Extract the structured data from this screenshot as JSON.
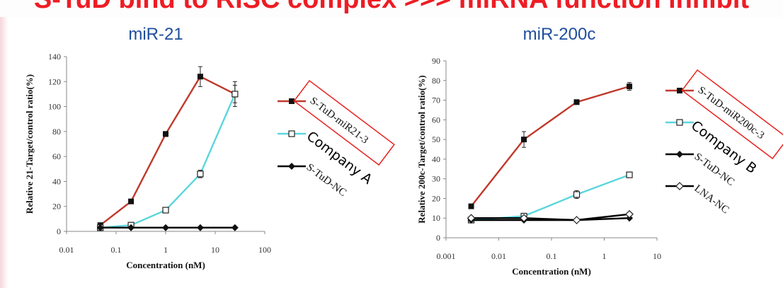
{
  "banner": {
    "title": "S-TuD bind to RISC complex >>> miRNA function inhibit"
  },
  "colors": {
    "red": "#c0392b",
    "cyan": "#5bd6dc",
    "black": "#000000",
    "box": "#e8211d"
  },
  "chart_data": [
    {
      "type": "line",
      "title": "miR-21",
      "xlabel": "Concentration (nM)",
      "ylabel": "Relative 21-Target/control ratio(%)",
      "xscale": "log",
      "xlim": [
        0.01,
        100
      ],
      "ylim": [
        0,
        140
      ],
      "xticks": [
        "0.01",
        "0.1",
        "1",
        "10",
        "100"
      ],
      "xtick_values": [
        0.01,
        0.1,
        1,
        10,
        100
      ],
      "yticks": [
        0,
        20,
        40,
        60,
        80,
        100,
        120,
        140
      ],
      "series": [
        {
          "name": "S-TuD-miR21-3",
          "color": "red",
          "marker": "filled-square",
          "x": [
            0.048,
            0.2,
            1,
            5,
            25
          ],
          "y": [
            5,
            24,
            78,
            124,
            110
          ],
          "err": [
            0,
            0,
            2,
            8,
            10
          ]
        },
        {
          "name": "Company A",
          "color": "cyan",
          "marker": "open-square",
          "x": [
            0.048,
            0.2,
            1,
            5,
            25
          ],
          "y": [
            3,
            5,
            17,
            46,
            110
          ],
          "err": [
            0,
            0,
            1,
            3,
            7
          ]
        },
        {
          "name": "S-TuD-NC",
          "color": "black",
          "marker": "filled-diamond",
          "x": [
            0.048,
            0.2,
            1,
            5,
            25
          ],
          "y": [
            3,
            3,
            3,
            3,
            3
          ],
          "err": [
            0,
            0,
            0,
            0,
            0
          ]
        }
      ],
      "legend": [
        "S-TuD-miR21-3",
        "Company A",
        "S-TuD-NC"
      ],
      "annotation": {
        "boxed_label": "S-TuD-miR21-3",
        "company": "Company A"
      }
    },
    {
      "type": "line",
      "title": "miR-200c",
      "xlabel": "Concentration (nM)",
      "ylabel": "Relative 200c-Target/control ratio(%)",
      "xscale": "log",
      "xlim": [
        0.001,
        10
      ],
      "ylim": [
        0,
        90
      ],
      "xticks": [
        "0.001",
        "0.01",
        "0.1",
        "1",
        "10"
      ],
      "xtick_values": [
        0.001,
        0.01,
        0.1,
        1,
        10
      ],
      "yticks": [
        0,
        10,
        20,
        30,
        40,
        50,
        60,
        70,
        80,
        90
      ],
      "series": [
        {
          "name": "S-TuD-miR200c-3",
          "color": "red",
          "marker": "filled-square",
          "x": [
            0.003,
            0.03,
            0.3,
            3
          ],
          "y": [
            16,
            50,
            69,
            77
          ],
          "err": [
            0,
            4,
            0,
            2
          ]
        },
        {
          "name": "Company B",
          "color": "cyan",
          "marker": "open-square",
          "x": [
            0.003,
            0.03,
            0.3,
            3
          ],
          "y": [
            9,
            11,
            22,
            32
          ],
          "err": [
            0,
            0,
            2,
            1
          ]
        },
        {
          "name": "S-TuD-NC",
          "color": "black",
          "marker": "filled-diamond",
          "x": [
            0.003,
            0.03,
            0.3,
            3
          ],
          "y": [
            9,
            9,
            9,
            10
          ],
          "err": [
            0,
            0,
            0,
            0
          ]
        },
        {
          "name": "LNA-NC",
          "color": "black",
          "marker": "open-diamond",
          "x": [
            0.003,
            0.03,
            0.3,
            3
          ],
          "y": [
            10,
            10,
            9,
            12
          ],
          "err": [
            0,
            0,
            0,
            0
          ]
        }
      ],
      "legend": [
        "S-TuD-miR200c-3",
        "Company B",
        "S-TuD-NC",
        "LNA-NC"
      ],
      "annotation": {
        "boxed_label": "S-TuD-miR200c-3",
        "company": "Company B"
      }
    }
  ]
}
